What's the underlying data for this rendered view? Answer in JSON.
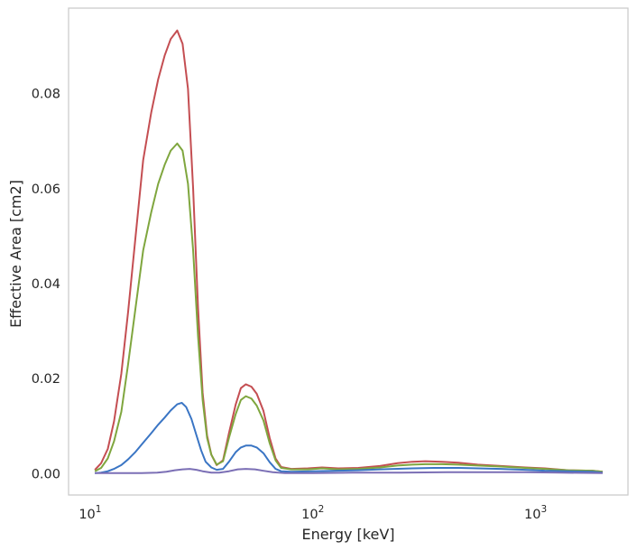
{
  "chart_data": {
    "type": "line",
    "title": "",
    "xlabel": "Energy [keV]",
    "ylabel": "Effective Area [cm2]",
    "xscale": "log",
    "xlim": [
      8,
      2600
    ],
    "ylim": [
      -0.0045,
      0.098
    ],
    "grid": false,
    "legend": "none",
    "x_ticks": [
      {
        "value": 10,
        "base": "10",
        "exp": "1"
      },
      {
        "value": 100,
        "base": "10",
        "exp": "2"
      },
      {
        "value": 1000,
        "base": "10",
        "exp": "3"
      }
    ],
    "y_ticks": [
      {
        "value": 0.0,
        "label": "0.00"
      },
      {
        "value": 0.02,
        "label": "0.02"
      },
      {
        "value": 0.04,
        "label": "0.04"
      },
      {
        "value": 0.06,
        "label": "0.06"
      },
      {
        "value": 0.08,
        "label": "0.08"
      }
    ],
    "series": [
      {
        "color": "#c44e52",
        "points": [
          [
            10.5,
            0.0008
          ],
          [
            11.2,
            0.0022
          ],
          [
            12,
            0.0052
          ],
          [
            12.8,
            0.011
          ],
          [
            13.8,
            0.021
          ],
          [
            14.8,
            0.034
          ],
          [
            16,
            0.05
          ],
          [
            17.3,
            0.066
          ],
          [
            18.8,
            0.076
          ],
          [
            20.2,
            0.083
          ],
          [
            21.6,
            0.088
          ],
          [
            23,
            0.0915
          ],
          [
            24.6,
            0.0933
          ],
          [
            26,
            0.0905
          ],
          [
            27.5,
            0.081
          ],
          [
            29,
            0.06
          ],
          [
            30.5,
            0.035
          ],
          [
            32,
            0.017
          ],
          [
            33.5,
            0.008
          ],
          [
            35,
            0.004
          ],
          [
            37,
            0.0018
          ],
          [
            39.5,
            0.0028
          ],
          [
            42,
            0.0085
          ],
          [
            45,
            0.0145
          ],
          [
            47.5,
            0.018
          ],
          [
            50,
            0.0188
          ],
          [
            53,
            0.0183
          ],
          [
            56,
            0.0168
          ],
          [
            60,
            0.0132
          ],
          [
            64,
            0.0075
          ],
          [
            68,
            0.0032
          ],
          [
            72,
            0.0014
          ],
          [
            80,
            0.001
          ],
          [
            95,
            0.0011
          ],
          [
            110,
            0.0013
          ],
          [
            130,
            0.0011
          ],
          [
            160,
            0.0012
          ],
          [
            200,
            0.0016
          ],
          [
            240,
            0.0022
          ],
          [
            280,
            0.0025
          ],
          [
            320,
            0.0026
          ],
          [
            380,
            0.0025
          ],
          [
            450,
            0.0023
          ],
          [
            550,
            0.0019
          ],
          [
            700,
            0.0016
          ],
          [
            900,
            0.0013
          ],
          [
            1100,
            0.0011
          ],
          [
            1400,
            0.0007
          ],
          [
            1800,
            0.0006
          ],
          [
            2000,
            0.0004
          ]
        ]
      },
      {
        "color": "#55a868",
        "stroke": "#7fa63e",
        "points": [
          [
            10.5,
            0.0005
          ],
          [
            11.2,
            0.0012
          ],
          [
            12,
            0.0032
          ],
          [
            12.8,
            0.0068
          ],
          [
            13.8,
            0.013
          ],
          [
            14.8,
            0.023
          ],
          [
            16,
            0.035
          ],
          [
            17.3,
            0.047
          ],
          [
            18.8,
            0.055
          ],
          [
            20.2,
            0.061
          ],
          [
            21.6,
            0.065
          ],
          [
            23,
            0.068
          ],
          [
            24.6,
            0.0695
          ],
          [
            26,
            0.068
          ],
          [
            27.5,
            0.061
          ],
          [
            29,
            0.047
          ],
          [
            30.5,
            0.029
          ],
          [
            32,
            0.0155
          ],
          [
            33.5,
            0.0075
          ],
          [
            35,
            0.004
          ],
          [
            37,
            0.0019
          ],
          [
            39.5,
            0.0026
          ],
          [
            42,
            0.0075
          ],
          [
            45,
            0.0125
          ],
          [
            47.5,
            0.0155
          ],
          [
            50,
            0.0163
          ],
          [
            53,
            0.0158
          ],
          [
            56,
            0.0143
          ],
          [
            60,
            0.0112
          ],
          [
            64,
            0.0064
          ],
          [
            68,
            0.0028
          ],
          [
            72,
            0.0012
          ],
          [
            80,
            0.0009
          ],
          [
            95,
            0.0009
          ],
          [
            110,
            0.0011
          ],
          [
            130,
            0.0009
          ],
          [
            160,
            0.001
          ],
          [
            200,
            0.0013
          ],
          [
            240,
            0.0017
          ],
          [
            280,
            0.0019
          ],
          [
            320,
            0.002
          ],
          [
            380,
            0.002
          ],
          [
            450,
            0.0019
          ],
          [
            550,
            0.0017
          ],
          [
            700,
            0.0015
          ],
          [
            900,
            0.0012
          ],
          [
            1100,
            0.001
          ],
          [
            1400,
            0.0007
          ],
          [
            1800,
            0.0006
          ],
          [
            2000,
            0.0004
          ]
        ]
      },
      {
        "color": "#4c72b0",
        "stroke": "#3a75c4",
        "points": [
          [
            10.5,
            0.0001
          ],
          [
            11.2,
            0.0002
          ],
          [
            12,
            0.0005
          ],
          [
            12.8,
            0.001
          ],
          [
            13.8,
            0.0018
          ],
          [
            14.8,
            0.003
          ],
          [
            16,
            0.0046
          ],
          [
            17.3,
            0.0065
          ],
          [
            18.8,
            0.0085
          ],
          [
            20.2,
            0.0103
          ],
          [
            21.6,
            0.0118
          ],
          [
            23,
            0.0133
          ],
          [
            24.6,
            0.0146
          ],
          [
            25.8,
            0.0149
          ],
          [
            27,
            0.014
          ],
          [
            28.5,
            0.0115
          ],
          [
            30,
            0.0081
          ],
          [
            31.5,
            0.0049
          ],
          [
            33,
            0.0025
          ],
          [
            35,
            0.0013
          ],
          [
            37,
            0.0008
          ],
          [
            39.5,
            0.001
          ],
          [
            42,
            0.0025
          ],
          [
            45,
            0.0045
          ],
          [
            47.5,
            0.0055
          ],
          [
            50,
            0.0059
          ],
          [
            53,
            0.0059
          ],
          [
            56,
            0.0055
          ],
          [
            60,
            0.0043
          ],
          [
            64,
            0.0024
          ],
          [
            68,
            0.001
          ],
          [
            72,
            0.0005
          ],
          [
            80,
            0.0004
          ],
          [
            100,
            0.0005
          ],
          [
            130,
            0.0006
          ],
          [
            160,
            0.0007
          ],
          [
            200,
            0.0009
          ],
          [
            280,
            0.0011
          ],
          [
            350,
            0.0012
          ],
          [
            450,
            0.0012
          ],
          [
            550,
            0.0011
          ],
          [
            700,
            0.001
          ],
          [
            900,
            0.0008
          ],
          [
            1100,
            0.0006
          ],
          [
            1400,
            0.0005
          ],
          [
            1800,
            0.0004
          ],
          [
            2000,
            0.0002
          ]
        ]
      },
      {
        "color": "#8172b2",
        "stroke": "#7b6fb5",
        "points": [
          [
            10.5,
            0.0001
          ],
          [
            12,
            0.0001
          ],
          [
            14,
            0.0001
          ],
          [
            17,
            0.0001
          ],
          [
            20,
            0.0002
          ],
          [
            22,
            0.0004
          ],
          [
            24,
            0.0007
          ],
          [
            26,
            0.0009
          ],
          [
            28,
            0.001
          ],
          [
            30,
            0.0008
          ],
          [
            32,
            0.0005
          ],
          [
            35,
            0.0002
          ],
          [
            38,
            0.0002
          ],
          [
            42,
            0.0005
          ],
          [
            46,
            0.0009
          ],
          [
            50,
            0.001
          ],
          [
            55,
            0.0009
          ],
          [
            60,
            0.0006
          ],
          [
            66,
            0.0003
          ],
          [
            75,
            0.0001
          ],
          [
            100,
            0.0001
          ],
          [
            150,
            0.0002
          ],
          [
            250,
            0.0002
          ],
          [
            400,
            0.0003
          ],
          [
            600,
            0.0003
          ],
          [
            900,
            0.0003
          ],
          [
            1300,
            0.0002
          ],
          [
            2000,
            0.0001
          ]
        ]
      }
    ]
  }
}
